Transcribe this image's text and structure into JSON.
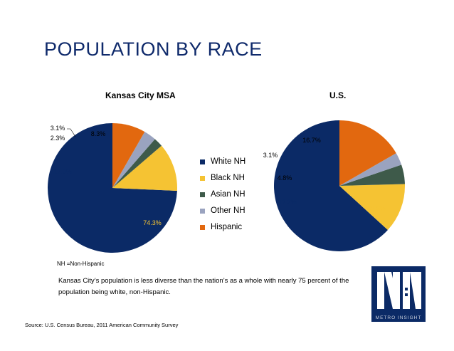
{
  "page": {
    "title": "POPULATION BY RACE",
    "footnote": "NH =Non-Hispanic",
    "caption": "Kansas City’s population is less diverse than the nation’s as a whole with nearly 75 percent of the population being white, non-Hispanic.",
    "source": "Source: U.S. Census Bureau, 2011 American Community Survey",
    "logo_text": "METRO INSIGHT"
  },
  "colors": {
    "white_nh": "#0b2a66",
    "black_nh": "#f5c333",
    "asian_nh": "#3e5a4a",
    "other_nh": "#9aa3bf",
    "hispanic": "#e2680f"
  },
  "legend": [
    {
      "label": "White NH",
      "color_key": "white_nh"
    },
    {
      "label": "Black NH",
      "color_key": "black_nh"
    },
    {
      "label": "Asian NH",
      "color_key": "asian_nh"
    },
    {
      "label": "Other NH",
      "color_key": "other_nh"
    },
    {
      "label": "Hispanic",
      "color_key": "hispanic"
    }
  ],
  "chart_data": [
    {
      "type": "pie",
      "title": "Kansas City MSA",
      "categories": [
        "White NH",
        "Black NH",
        "Asian NH",
        "Other NH",
        "Hispanic"
      ],
      "values": [
        74.3,
        12.0,
        2.3,
        3.1,
        8.3
      ],
      "labels": [
        "74.3%",
        "12.0%",
        "2.3%",
        "3.1%",
        "8.3%"
      ]
    },
    {
      "type": "pie",
      "title": "U.S.",
      "categories": [
        "White NH",
        "Black NH",
        "Asian NH",
        "Other NH",
        "Hispanic"
      ],
      "values": [
        63.3,
        12.2,
        4.8,
        3.1,
        16.7
      ],
      "labels": [
        "63.3%",
        "12.2%",
        "4.8%",
        "3.1%",
        "16.7%"
      ]
    }
  ]
}
